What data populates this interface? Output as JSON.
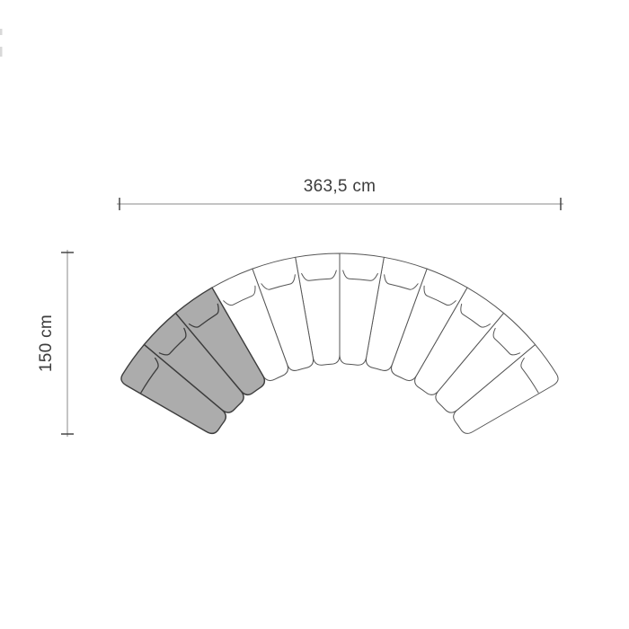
{
  "drawing": {
    "type": "curved-modular-sofa-top-view",
    "background": "#ffffff"
  },
  "dimensions": {
    "width": {
      "label": "363,5 cm",
      "value_cm": 363.5,
      "orientation": "horizontal"
    },
    "depth": {
      "label": "150 cm",
      "value_cm": 150,
      "orientation": "vertical"
    },
    "line_color": "#8a8a8a",
    "tick_color": "#3a3a3a",
    "text_color": "#3c3c3c"
  },
  "sofa": {
    "modules_total": 12,
    "modules_highlighted": 3,
    "arc_span_degrees": 120,
    "module_span_degrees": 10,
    "highlight_fill": "#acacac",
    "module_fill": "#ffffff",
    "module_stroke": "#555555",
    "highlight_stroke": "#3d3d3d"
  },
  "artifacts": {
    "left_edge_marks": 2,
    "mark_color": "#d8d8d8"
  }
}
